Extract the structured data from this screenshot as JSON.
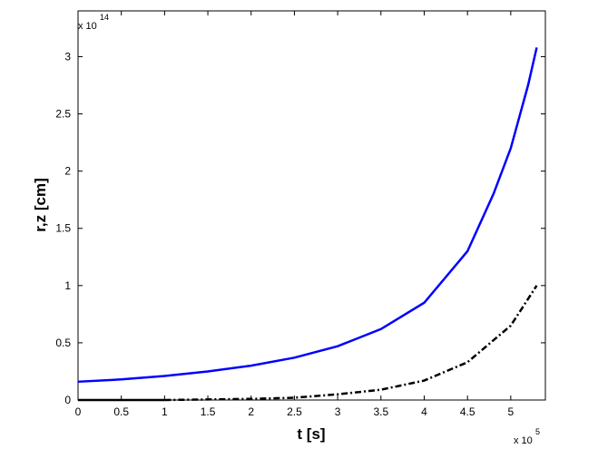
{
  "chart_data": {
    "type": "line",
    "xlabel": "t [s]",
    "ylabel": "r,z [cm]",
    "x_multiplier": "x 10",
    "x_exponent": "5",
    "y_multiplier": "x 10",
    "y_exponent": "14",
    "xlim": [
      0,
      5.4
    ],
    "ylim": [
      0,
      3.4
    ],
    "xticks": [
      0,
      0.5,
      1,
      1.5,
      2,
      2.5,
      3,
      3.5,
      4,
      4.5,
      5
    ],
    "yticks": [
      0,
      0.5,
      1,
      1.5,
      2,
      2.5,
      3
    ],
    "grid": false,
    "series": [
      {
        "color": "#0000ff",
        "style": "solid",
        "x": [
          0,
          0.5,
          1,
          1.5,
          2,
          2.5,
          3,
          3.5,
          4,
          4.5,
          4.8,
          5,
          5.2,
          5.3
        ],
        "values": [
          0.16,
          0.18,
          0.21,
          0.25,
          0.3,
          0.37,
          0.47,
          0.62,
          0.85,
          1.3,
          1.8,
          2.2,
          2.75,
          3.08
        ]
      },
      {
        "color": "#000000",
        "style": "dashdot",
        "x": [
          1,
          1.5,
          2,
          2.5,
          3,
          3.5,
          4,
          4.5,
          5,
          5.3
        ],
        "values": [
          0,
          0.005,
          0.01,
          0.02,
          0.05,
          0.09,
          0.17,
          0.33,
          0.65,
          1.0
        ]
      },
      {
        "color": "#000000",
        "style": "solid",
        "x": [
          0,
          1
        ],
        "values": [
          0,
          0
        ]
      }
    ]
  }
}
